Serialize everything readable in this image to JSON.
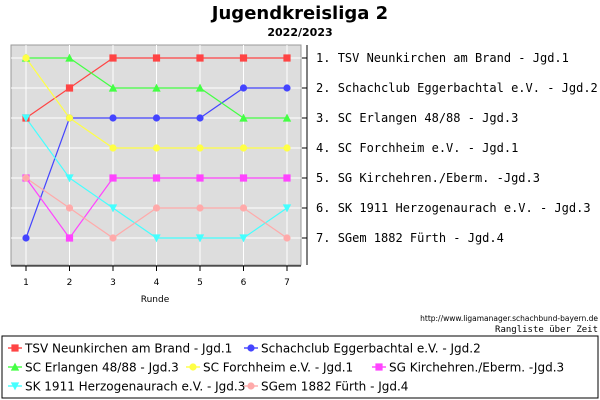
{
  "chart_data": {
    "type": "line",
    "title": "Jugendkreisliga 2",
    "subtitle": "2022/2023",
    "xlabel": "Runde",
    "ylabel": "",
    "x": [
      1,
      2,
      3,
      4,
      5,
      6,
      7
    ],
    "ylim": [
      1,
      7
    ],
    "y_inverted": true,
    "grid": true,
    "standings": [
      {
        "rank": "1.",
        "team": "TSV Neunkirchen am Brand - Jgd.1"
      },
      {
        "rank": "2.",
        "team": "Schachclub Eggerbachtal e.V. - Jgd.2"
      },
      {
        "rank": "3.",
        "team": "SC Erlangen 48/88 - Jgd.3"
      },
      {
        "rank": "4.",
        "team": "SC Forchheim e.V. - Jgd.1"
      },
      {
        "rank": "5.",
        "team": "SG Kirchehren./Eberm. -Jgd.3"
      },
      {
        "rank": "6.",
        "team": "SK 1911 Herzogenaurach e.V. - Jgd.3"
      },
      {
        "rank": "7.",
        "team": "SGem 1882 Fürth - Jgd.4"
      }
    ],
    "series": [
      {
        "name": "TSV Neunkirchen am Brand - Jgd.1",
        "color": "#ff4444",
        "marker": "square",
        "values": [
          3,
          2,
          1,
          1,
          1,
          1,
          1
        ]
      },
      {
        "name": "Schachclub Eggerbachtal e.V. - Jgd.2",
        "color": "#4444ff",
        "marker": "circle",
        "values": [
          7,
          3,
          3,
          3,
          3,
          2,
          2
        ]
      },
      {
        "name": "SC Erlangen 48/88 - Jgd.3",
        "color": "#44ff44",
        "marker": "triangle",
        "values": [
          1,
          1,
          2,
          2,
          2,
          3,
          3
        ]
      },
      {
        "name": "SC Forchheim e.V. - Jgd.1",
        "color": "#ffff44",
        "marker": "circle",
        "values": [
          1,
          3,
          4,
          4,
          4,
          4,
          4
        ]
      },
      {
        "name": "SG Kirchehren./Eberm. -Jgd.3",
        "color": "#ff44ff",
        "marker": "square",
        "values": [
          5,
          7,
          5,
          5,
          5,
          5,
          5
        ]
      },
      {
        "name": "SK 1911 Herzogenaurach e.V. - Jgd.3",
        "color": "#44ffff",
        "marker": "triangle-down",
        "values": [
          3,
          5,
          6,
          7,
          7,
          7,
          6
        ]
      },
      {
        "name": "SGem 1882 Fürth - Jgd.4",
        "color": "#ffaaaa",
        "marker": "circle",
        "values": [
          5,
          6,
          7,
          6,
          6,
          6,
          7
        ]
      }
    ],
    "legend_placement": "bottom",
    "source_url": "http://www.ligamanager.schachbund-bayern.de",
    "footnote": "Rangliste über Zeit"
  }
}
